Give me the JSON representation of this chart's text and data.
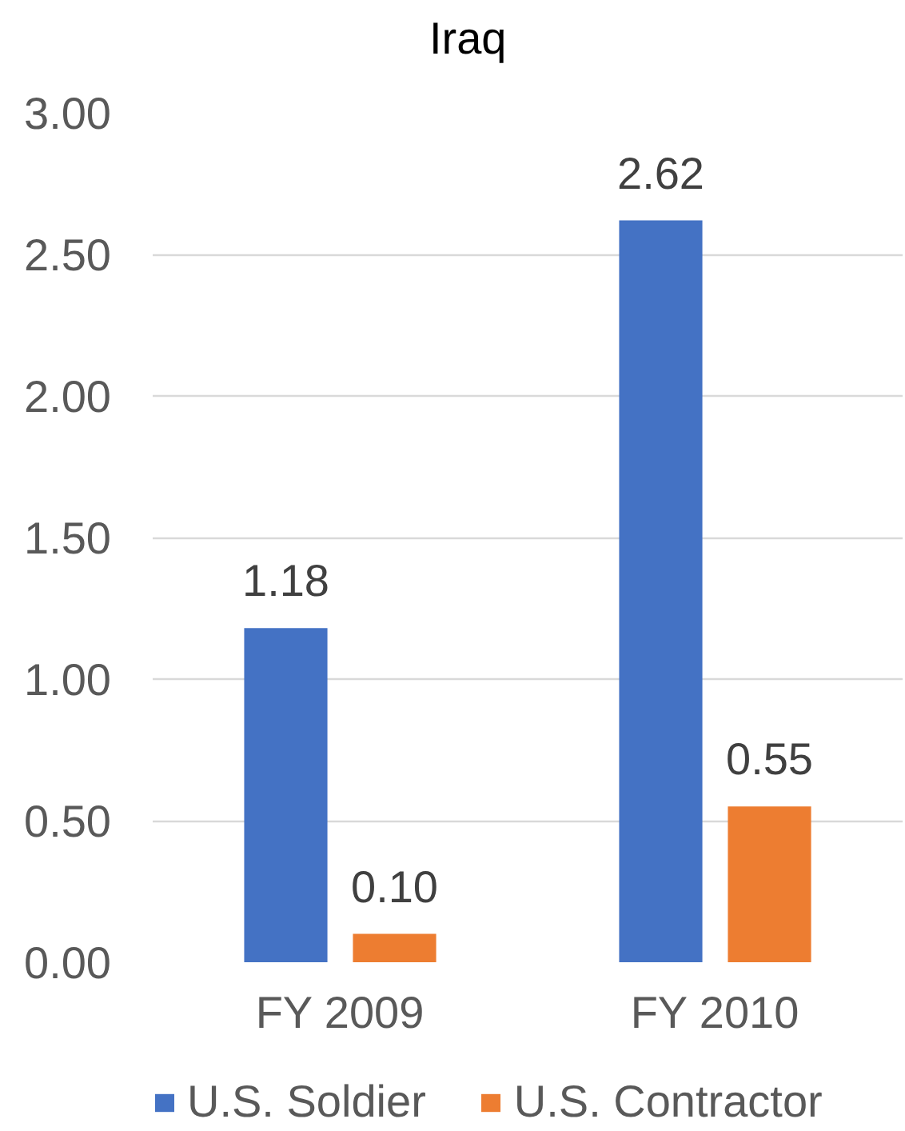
{
  "chart_data": {
    "type": "bar",
    "title": "Iraq",
    "categories": [
      "FY 2009",
      "FY 2010"
    ],
    "series": [
      {
        "name": "U.S. Soldier",
        "color": "#4472c4",
        "values": [
          1.18,
          2.62
        ],
        "value_labels": [
          "1.18",
          "2.62"
        ]
      },
      {
        "name": "U.S. Contractor",
        "color": "#ed7d31",
        "values": [
          0.1,
          0.55
        ],
        "value_labels": [
          "0.10",
          "0.55"
        ]
      }
    ],
    "ylim": [
      0,
      3
    ],
    "yticks": [
      {
        "value": 0,
        "label": "0.00"
      },
      {
        "value": 0.5,
        "label": "0.50"
      },
      {
        "value": 1,
        "label": "1.00"
      },
      {
        "value": 1.5,
        "label": "1.50"
      },
      {
        "value": 2,
        "label": "2.00"
      },
      {
        "value": 2.5,
        "label": "2.50"
      },
      {
        "value": 3,
        "label": "3.00"
      }
    ],
    "grid": "y",
    "legend": "bottom"
  }
}
